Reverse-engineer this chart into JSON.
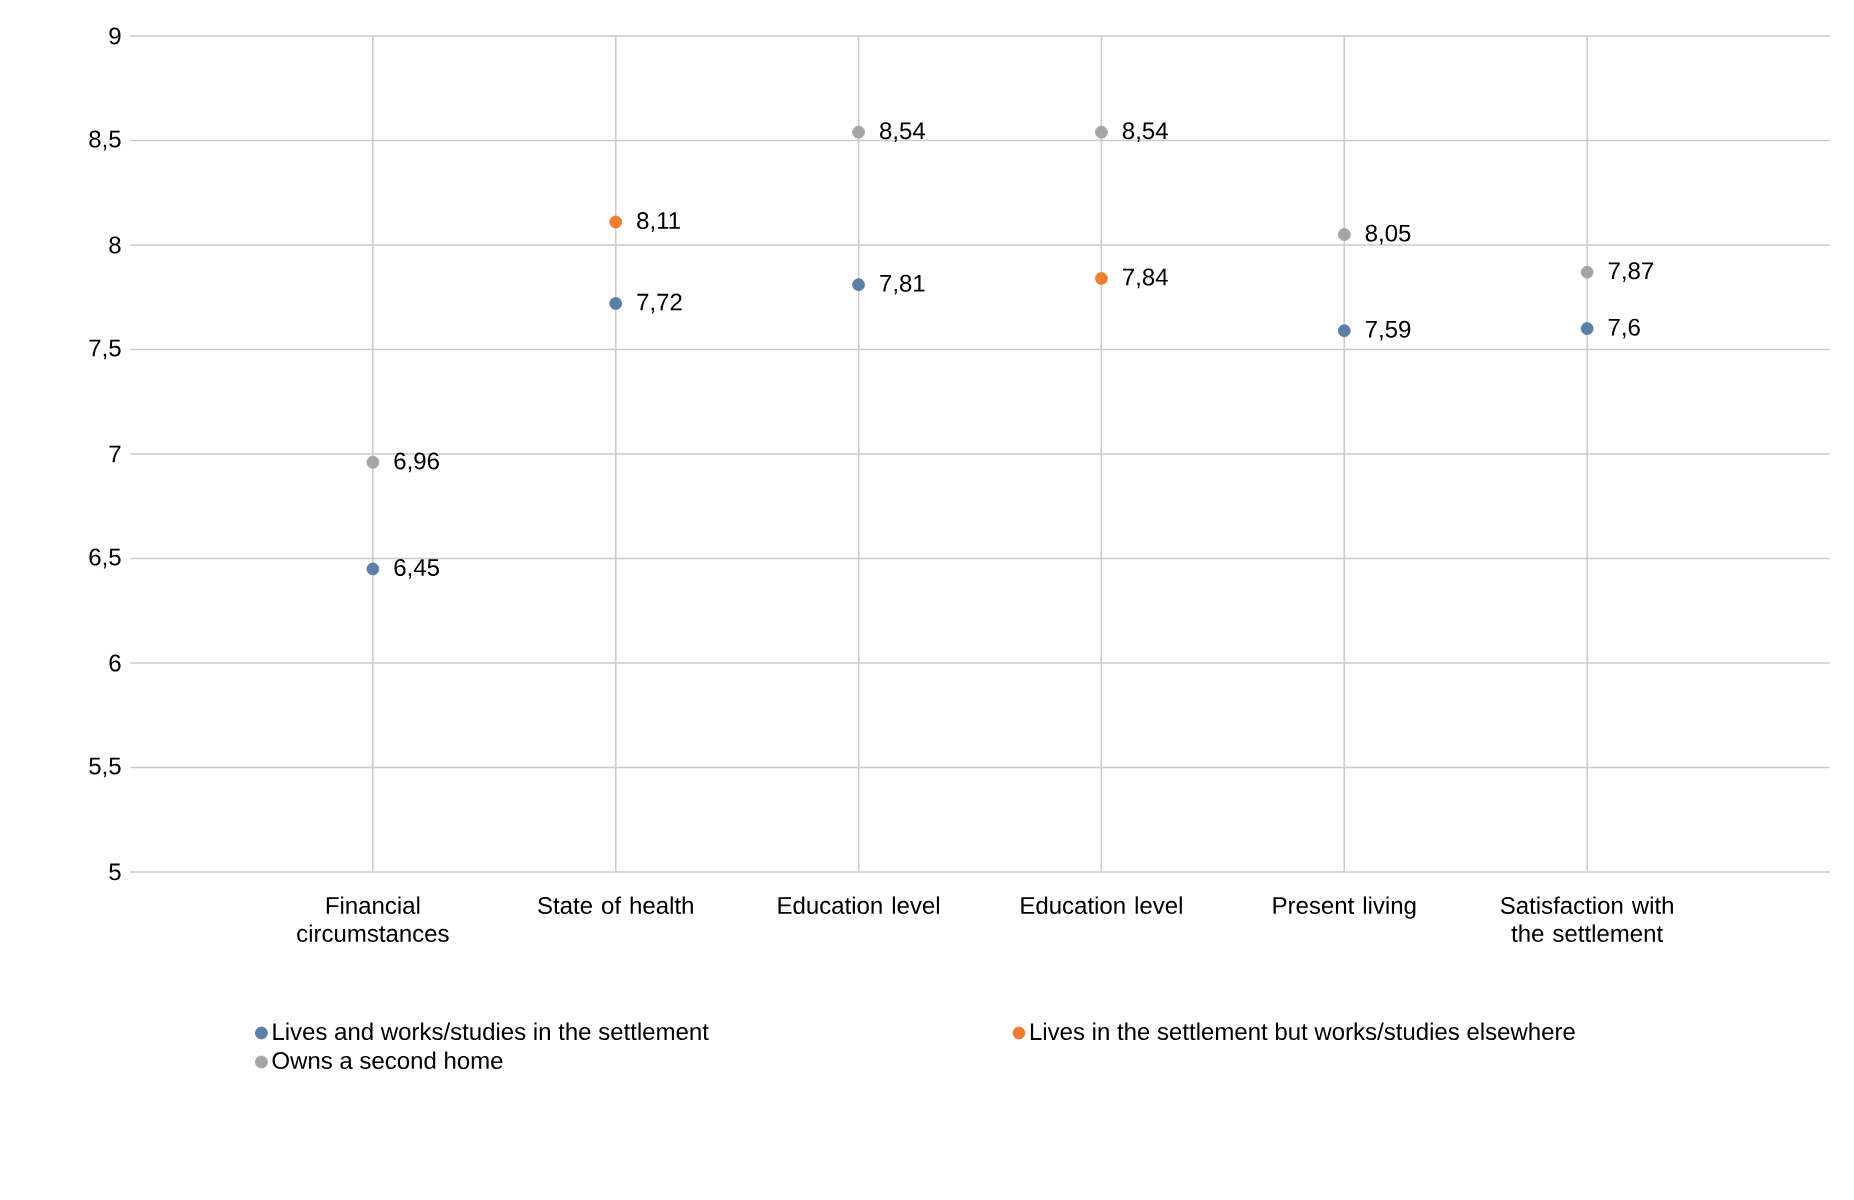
{
  "chart_data": {
    "type": "scatter",
    "categories": [
      "Financial circumstances",
      "State of health",
      "Education level",
      "Education level",
      "Present living",
      "Satisfaction with the settlement"
    ],
    "series": [
      {
        "name": "Lives and works/studies in the settlement",
        "color": "#5b7fa6",
        "values": [
          6.45,
          7.72,
          7.81,
          null,
          7.59,
          7.6
        ],
        "value_labels": [
          "6,45",
          "7,72",
          "7,81",
          null,
          "7,59",
          "7,6"
        ]
      },
      {
        "name": "Lives in the settlement but works/studies elsewhere",
        "color": "#ed7d31",
        "values": [
          null,
          8.11,
          null,
          7.84,
          null,
          null
        ],
        "value_labels": [
          null,
          "8,11",
          null,
          "7,84",
          null,
          null
        ]
      },
      {
        "name": "Owns a second home",
        "color": "#a5a5a5",
        "values": [
          6.96,
          null,
          8.54,
          8.54,
          8.05,
          7.87
        ],
        "value_labels": [
          "6,96",
          null,
          "8,54",
          "8,54",
          "8,05",
          "7,87"
        ]
      }
    ],
    "ylim": [
      5,
      9
    ],
    "yticks": [
      5,
      {
        "value": 5.5,
        "label": "5,5"
      },
      6,
      {
        "value": 6.5,
        "label": "6,5"
      },
      7,
      {
        "value": 7.5,
        "label": "7,5"
      },
      8,
      {
        "value": 8.5,
        "label": "8,5"
      },
      9
    ],
    "grid": true,
    "legend": "bottom",
    "marker": "circle"
  }
}
